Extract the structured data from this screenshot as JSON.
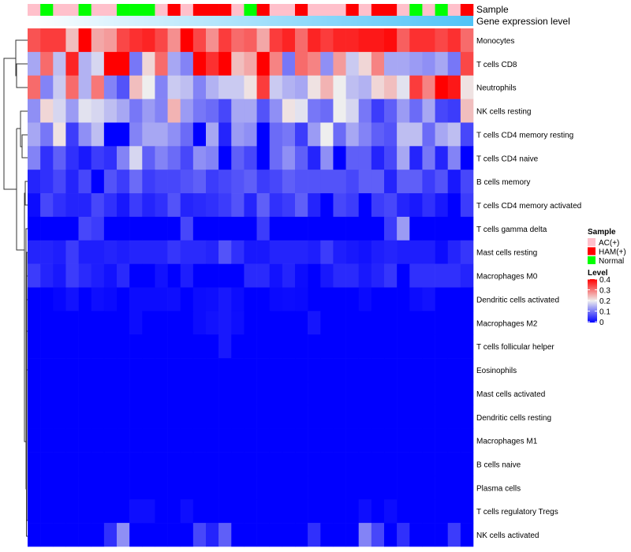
{
  "chart_data": {
    "type": "heatmap",
    "title": "",
    "annotation_labels": {
      "sample": "Sample",
      "gene_expression": "Gene expression level"
    },
    "gene_expression_colors": {
      "low": "#ffffff",
      "high": "#4fc3f7"
    },
    "sample_groups": [
      "AC(+)",
      "N",
      "AC(+)",
      "AC(+)",
      "N",
      "AC(+)",
      "AC(+)",
      "N",
      "N",
      "N",
      "AC(+)",
      "HAM(+)",
      "AC(+)",
      "HAM(+)",
      "HAM(+)",
      "HAM(+)",
      "AC(+)",
      "N",
      "HAM(+)",
      "AC(+)",
      "AC(+)",
      "HAM(+)",
      "AC(+)",
      "AC(+)",
      "AC(+)",
      "HAM(+)",
      "AC(+)",
      "HAM(+)",
      "HAM(+)",
      "AC(+)",
      "N",
      "AC(+)",
      "N",
      "AC(+)",
      "HAM(+)"
    ],
    "legend_sample": {
      "title": "Sample",
      "items": [
        {
          "key": "AC(+)",
          "label": "AC(+)",
          "color": "#ffc0cb"
        },
        {
          "key": "HAM(+)",
          "label": "HAM(+)",
          "color": "#ff0000"
        },
        {
          "key": "N",
          "label": "Normal",
          "color": "#00ff00"
        }
      ]
    },
    "legend_level": {
      "title": "Level",
      "ticks": [
        "0.4",
        "0.3",
        "0.2",
        "0.1",
        "0"
      ],
      "range": [
        0,
        0.4
      ],
      "colors": {
        "low": "#0000ff",
        "mid": "#eeeeee",
        "high": "#ff0000"
      }
    },
    "rows": [
      "Monocytes",
      "T cells CD8",
      "Neutrophils",
      "NK cells resting",
      "T cells CD4 memory resting",
      "T cells CD4 naive",
      "B cells memory",
      "T cells CD4 memory activated",
      "T cells gamma delta",
      "Mast cells resting",
      "Macrophages M0",
      "Dendritic cells activated",
      "Macrophages M2",
      "T cells follicular helper",
      "Eosinophils",
      "Mast cells activated",
      "Dendritic cells resting",
      "Macrophages M1",
      "B cells naive",
      "Plasma cells",
      "T cells regulatory  Tregs",
      "NK cells activated"
    ],
    "values": [
      [
        0.33,
        0.35,
        0.35,
        0.24,
        0.4,
        0.26,
        0.27,
        0.34,
        0.36,
        0.37,
        0.34,
        0.28,
        0.4,
        0.34,
        0.28,
        0.35,
        0.31,
        0.32,
        0.26,
        0.35,
        0.37,
        0.31,
        0.37,
        0.35,
        0.37,
        0.37,
        0.38,
        0.38,
        0.39,
        0.32,
        0.36,
        0.36,
        0.34,
        0.36,
        0.31
      ],
      [
        0.14,
        0.31,
        0.16,
        0.37,
        0.15,
        0.18,
        0.4,
        0.4,
        0.1,
        0.22,
        0.31,
        0.14,
        0.11,
        0.4,
        0.36,
        0.4,
        0.24,
        0.26,
        0.4,
        0.29,
        0.1,
        0.31,
        0.29,
        0.12,
        0.27,
        0.17,
        0.22,
        0.29,
        0.14,
        0.14,
        0.13,
        0.12,
        0.14,
        0.1,
        0.34
      ],
      [
        0.31,
        0.11,
        0.17,
        0.31,
        0.15,
        0.3,
        0.11,
        0.07,
        0.24,
        0.2,
        0.11,
        0.17,
        0.16,
        0.11,
        0.15,
        0.17,
        0.17,
        0.21,
        0.35,
        0.17,
        0.15,
        0.14,
        0.21,
        0.25,
        0.2,
        0.16,
        0.15,
        0.22,
        0.24,
        0.19,
        0.35,
        0.29,
        0.4,
        0.38,
        0.21
      ],
      [
        0.12,
        0.22,
        0.18,
        0.13,
        0.19,
        0.18,
        0.16,
        0.14,
        0.1,
        0.13,
        0.11,
        0.25,
        0.13,
        0.1,
        0.09,
        0.06,
        0.14,
        0.14,
        0.07,
        0.12,
        0.21,
        0.19,
        0.1,
        0.09,
        0.2,
        0.18,
        0.1,
        0.05,
        0.08,
        0.13,
        0.09,
        0.14,
        0.06,
        0.05,
        0.24
      ],
      [
        0.14,
        0.1,
        0.21,
        0.05,
        0.12,
        0.16,
        0,
        0,
        0.11,
        0.14,
        0.14,
        0.12,
        0.09,
        0,
        0.14,
        0.03,
        0.13,
        0.12,
        0,
        0.09,
        0.1,
        0.05,
        0.13,
        0.2,
        0.09,
        0.14,
        0.11,
        0.08,
        0.07,
        0.16,
        0.16,
        0.09,
        0.14,
        0.16,
        0.06
      ],
      [
        0.11,
        0.04,
        0.08,
        0.04,
        0.02,
        0.05,
        0.04,
        0.11,
        0.18,
        0.08,
        0.11,
        0.09,
        0.06,
        0.12,
        0.11,
        0,
        0.08,
        0.06,
        0,
        0.09,
        0.12,
        0.08,
        0.03,
        0.12,
        0,
        0.08,
        0.08,
        0.03,
        0.06,
        0.14,
        0.03,
        0.1,
        0.03,
        0.11,
        0
      ],
      [
        0.03,
        0.04,
        0.06,
        0.03,
        0.06,
        0,
        0.07,
        0.05,
        0.09,
        0.05,
        0.06,
        0.06,
        0.07,
        0.08,
        0.05,
        0.06,
        0.07,
        0.08,
        0.05,
        0.06,
        0.08,
        0.07,
        0.07,
        0.07,
        0.07,
        0.06,
        0.08,
        0.08,
        0.03,
        0.08,
        0.08,
        0.05,
        0.07,
        0.02,
        0.06
      ],
      [
        0.01,
        0.06,
        0.04,
        0.03,
        0.03,
        0.06,
        0.04,
        0.02,
        0.05,
        0.03,
        0.04,
        0.07,
        0.03,
        0.035,
        0.04,
        0.05,
        0.07,
        0.03,
        0.08,
        0.04,
        0.05,
        0.08,
        0.03,
        0,
        0.06,
        0.05,
        0,
        0.05,
        0.06,
        0.03,
        0.02,
        0.04,
        0.02,
        0,
        0.05
      ],
      [
        0,
        0,
        0,
        0,
        0.06,
        0.05,
        0,
        0,
        0,
        0,
        0,
        0,
        0.06,
        0,
        0,
        0,
        0,
        0,
        0.05,
        0,
        0,
        0,
        0,
        0,
        0,
        0,
        0,
        0,
        0.05,
        0.13,
        0,
        0,
        0,
        0,
        0
      ],
      [
        0.03,
        0.03,
        0.025,
        0.05,
        0.025,
        0.025,
        0.03,
        0.025,
        0.03,
        0.03,
        0.03,
        0.045,
        0.035,
        0.035,
        0.03,
        0.07,
        0.04,
        0.02,
        0.02,
        0.03,
        0.03,
        0.03,
        0.025,
        0.05,
        0.025,
        0.02,
        0.015,
        0.025,
        0.03,
        0.025,
        0.025,
        0.025,
        0.01,
        0.03,
        0.045
      ],
      [
        0.05,
        0.03,
        0.02,
        0.05,
        0.035,
        0.025,
        0.015,
        0.035,
        0,
        0,
        0.015,
        0,
        0.025,
        0,
        0,
        0,
        0,
        0.035,
        0.035,
        0.015,
        0.03,
        0.01,
        0,
        0.02,
        0.035,
        0.035,
        0.02,
        0.03,
        0.045,
        0,
        0.04,
        0.04,
        0.04,
        0.04,
        0.03
      ],
      [
        0,
        0,
        0.005,
        0.015,
        0,
        0.012,
        0.008,
        0,
        0.01,
        0.01,
        0.01,
        0.012,
        0,
        0.01,
        0.012,
        0.02,
        0.01,
        0,
        0,
        0.008,
        0.01,
        0.008,
        0,
        0,
        0,
        0,
        0.008,
        0,
        0,
        0,
        0.01,
        0.015,
        0,
        0,
        0
      ],
      [
        0,
        0,
        0,
        0,
        0,
        0,
        0,
        0,
        0.01,
        0,
        0,
        0,
        0,
        0.01,
        0.015,
        0.02,
        0.012,
        0,
        0,
        0,
        0,
        0,
        0.018,
        0,
        0,
        0,
        0,
        0,
        0,
        0,
        0,
        0,
        0,
        0,
        0
      ],
      [
        0,
        0,
        0,
        0,
        0,
        0,
        0,
        0,
        0,
        0,
        0,
        0,
        0,
        0,
        0,
        0.02,
        0,
        0,
        0,
        0,
        0,
        0,
        0,
        0,
        0,
        0,
        0,
        0,
        0,
        0,
        0,
        0,
        0,
        0,
        0
      ],
      [
        0,
        0,
        0,
        0,
        0,
        0,
        0,
        0,
        0,
        0,
        0,
        0,
        0,
        0,
        0,
        0,
        0,
        0,
        0,
        0,
        0,
        0,
        0,
        0,
        0,
        0,
        0,
        0,
        0,
        0,
        0,
        0,
        0,
        0,
        0
      ],
      [
        0,
        0,
        0,
        0,
        0,
        0,
        0,
        0,
        0,
        0,
        0,
        0,
        0,
        0,
        0,
        0,
        0,
        0,
        0,
        0,
        0,
        0,
        0,
        0,
        0,
        0,
        0,
        0,
        0,
        0,
        0,
        0,
        0,
        0,
        0
      ],
      [
        0,
        0,
        0,
        0,
        0,
        0,
        0,
        0,
        0,
        0,
        0,
        0,
        0,
        0,
        0,
        0,
        0,
        0,
        0,
        0,
        0,
        0,
        0,
        0,
        0,
        0,
        0,
        0,
        0,
        0,
        0,
        0,
        0,
        0,
        0
      ],
      [
        0,
        0,
        0,
        0,
        0,
        0,
        0,
        0,
        0,
        0,
        0,
        0,
        0,
        0,
        0,
        0,
        0,
        0,
        0,
        0,
        0,
        0,
        0,
        0,
        0,
        0,
        0,
        0,
        0,
        0,
        0,
        0,
        0,
        0,
        0
      ],
      [
        0,
        0,
        0,
        0,
        0,
        0,
        0,
        0,
        0,
        0,
        0,
        0,
        0,
        0,
        0,
        0,
        0,
        0,
        0,
        0,
        0,
        0,
        0,
        0,
        0,
        0,
        0,
        0,
        0,
        0,
        0,
        0,
        0,
        0,
        0
      ],
      [
        0,
        0,
        0,
        0,
        0,
        0,
        0,
        0,
        0,
        0,
        0,
        0,
        0,
        0,
        0,
        0,
        0,
        0,
        0,
        0,
        0,
        0,
        0,
        0,
        0,
        0,
        0,
        0,
        0,
        0,
        0,
        0,
        0,
        0,
        0
      ],
      [
        0,
        0,
        0,
        0,
        0,
        0,
        0,
        0,
        0.012,
        0.012,
        0,
        0,
        0.012,
        0,
        0,
        0,
        0,
        0,
        0,
        0,
        0,
        0,
        0,
        0,
        0,
        0,
        0.012,
        0,
        0.01,
        0,
        0,
        0,
        0,
        0,
        0
      ],
      [
        0,
        0,
        0,
        0,
        0,
        0,
        0.04,
        0.12,
        0,
        0,
        0,
        0,
        0,
        0.06,
        0.03,
        0.08,
        0,
        0,
        0,
        0,
        0,
        0,
        0.04,
        0,
        0,
        0,
        0.11,
        0.06,
        0,
        0.04,
        0,
        0,
        0,
        0.05,
        0
      ]
    ]
  }
}
